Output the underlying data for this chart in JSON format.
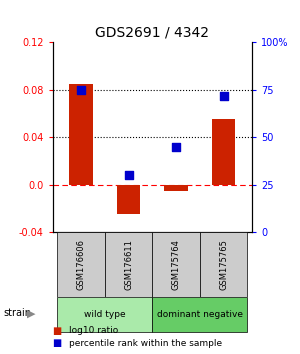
{
  "title": "GDS2691 / 4342",
  "samples": [
    "GSM176606",
    "GSM176611",
    "GSM175764",
    "GSM175765"
  ],
  "log10_ratio": [
    0.085,
    -0.025,
    -0.005,
    0.055
  ],
  "percentile_rank": [
    75,
    30,
    45,
    72
  ],
  "bar_color": "#cc2200",
  "dot_color": "#0000cc",
  "ylim_left": [
    -0.04,
    0.12
  ],
  "ylim_right": [
    0,
    100
  ],
  "yticks_left": [
    -0.04,
    0.0,
    0.04,
    0.08,
    0.12
  ],
  "yticks_right": [
    0,
    25,
    50,
    75,
    100
  ],
  "ytick_labels_right": [
    "0",
    "25",
    "50",
    "75",
    "100%"
  ],
  "hlines_dotted": [
    0.04,
    0.08
  ],
  "groups": [
    {
      "label": "wild type",
      "indices": [
        0,
        1
      ],
      "color": "#aaeaaa"
    },
    {
      "label": "dominant negative",
      "indices": [
        2,
        3
      ],
      "color": "#66cc66"
    }
  ],
  "legend_ratio_label": "log10 ratio",
  "legend_pct_label": "percentile rank within the sample",
  "bar_width": 0.5,
  "background_color": "#ffffff",
  "gray_color": "#cccccc"
}
